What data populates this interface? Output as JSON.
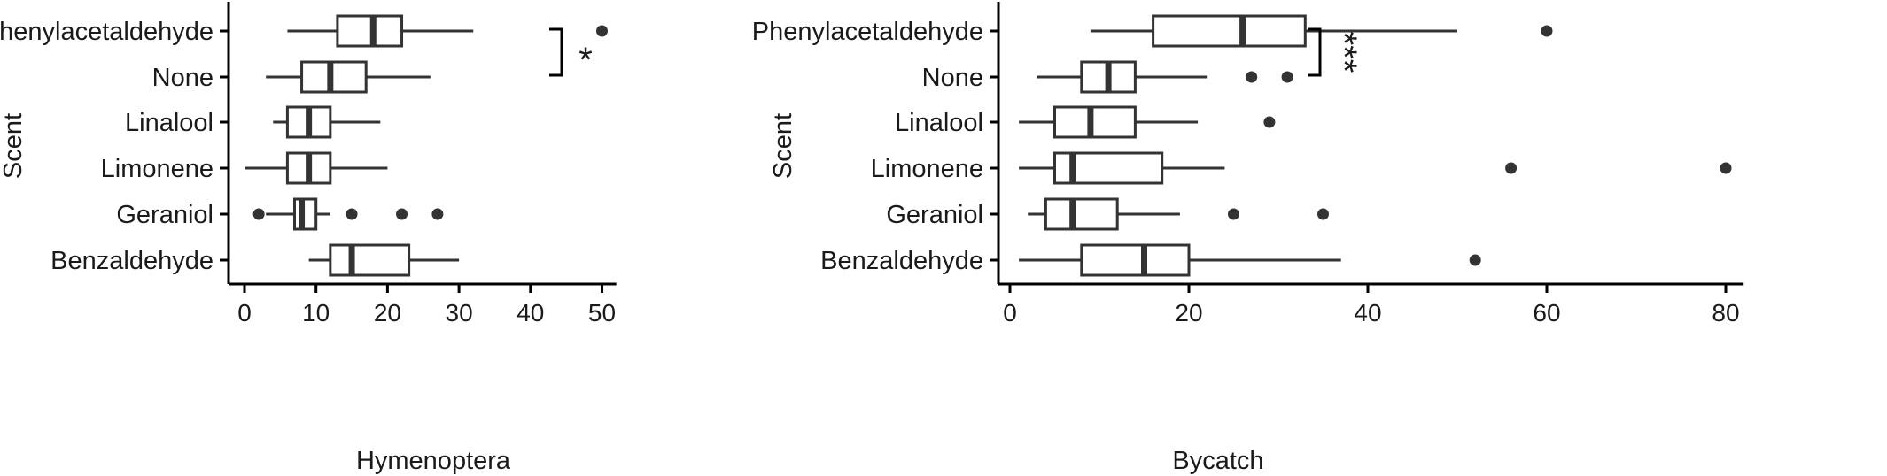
{
  "chart_data": [
    {
      "type": "boxplot",
      "orientation": "horizontal",
      "xlabel": "Hymenoptera",
      "ylabel": "Scent",
      "xlim": [
        -2,
        52
      ],
      "xticks": [
        0,
        10,
        20,
        30,
        40,
        50
      ],
      "categories": [
        "Phenylacetaldehyde",
        "None",
        "Linalool",
        "Limonene",
        "Geraniol",
        "Benzaldehyde"
      ],
      "boxes": [
        {
          "category": "Phenylacetaldehyde",
          "whisker_low": 6,
          "q1": 13,
          "median": 18,
          "q3": 22,
          "whisker_high": 32,
          "outliers": [
            50
          ]
        },
        {
          "category": "None",
          "whisker_low": 3,
          "q1": 8,
          "median": 12,
          "q3": 17,
          "whisker_high": 26,
          "outliers": []
        },
        {
          "category": "Linalool",
          "whisker_low": 4,
          "q1": 6,
          "median": 9,
          "q3": 12,
          "whisker_high": 19,
          "outliers": []
        },
        {
          "category": "Limonene",
          "whisker_low": 0,
          "q1": 6,
          "median": 9,
          "q3": 12,
          "whisker_high": 20,
          "outliers": []
        },
        {
          "category": "Geraniol",
          "whisker_low": 3,
          "q1": 7,
          "median": 8,
          "q3": 10,
          "whisker_high": 12,
          "outliers": [
            2,
            15,
            22,
            27
          ]
        },
        {
          "category": "Benzaldehyde",
          "whisker_low": 9,
          "q1": 12,
          "median": 15,
          "q3": 23,
          "whisker_high": 30,
          "outliers": []
        }
      ],
      "significance": {
        "between": [
          "Phenylacetaldehyde",
          "None"
        ],
        "label": "*"
      }
    },
    {
      "type": "boxplot",
      "orientation": "horizontal",
      "xlabel": "Bycatch",
      "ylabel": "Scent",
      "xlim": [
        -1,
        82
      ],
      "xticks": [
        0,
        20,
        40,
        60,
        80
      ],
      "categories": [
        "Phenylacetaldehyde",
        "None",
        "Linalool",
        "Limonene",
        "Geraniol",
        "Benzaldehyde"
      ],
      "boxes": [
        {
          "category": "Phenylacetaldehyde",
          "whisker_low": 9,
          "q1": 16,
          "median": 26,
          "q3": 33,
          "whisker_high": 50,
          "outliers": [
            60
          ]
        },
        {
          "category": "None",
          "whisker_low": 3,
          "q1": 8,
          "median": 11,
          "q3": 14,
          "whisker_high": 22,
          "outliers": [
            27,
            31
          ]
        },
        {
          "category": "Linalool",
          "whisker_low": 1,
          "q1": 5,
          "median": 9,
          "q3": 14,
          "whisker_high": 21,
          "outliers": [
            29
          ]
        },
        {
          "category": "Limonene",
          "whisker_low": 1,
          "q1": 5,
          "median": 7,
          "q3": 17,
          "whisker_high": 24,
          "outliers": [
            56,
            80
          ]
        },
        {
          "category": "Geraniol",
          "whisker_low": 2,
          "q1": 4,
          "median": 7,
          "q3": 12,
          "whisker_high": 19,
          "outliers": [
            25,
            35
          ]
        },
        {
          "category": "Benzaldehyde",
          "whisker_low": 1,
          "q1": 8,
          "median": 15,
          "q3": 20,
          "whisker_high": 37,
          "outliers": [
            52
          ]
        }
      ],
      "significance": {
        "between": [
          "Phenylacetaldehyde",
          "None"
        ],
        "label": "***"
      }
    }
  ]
}
